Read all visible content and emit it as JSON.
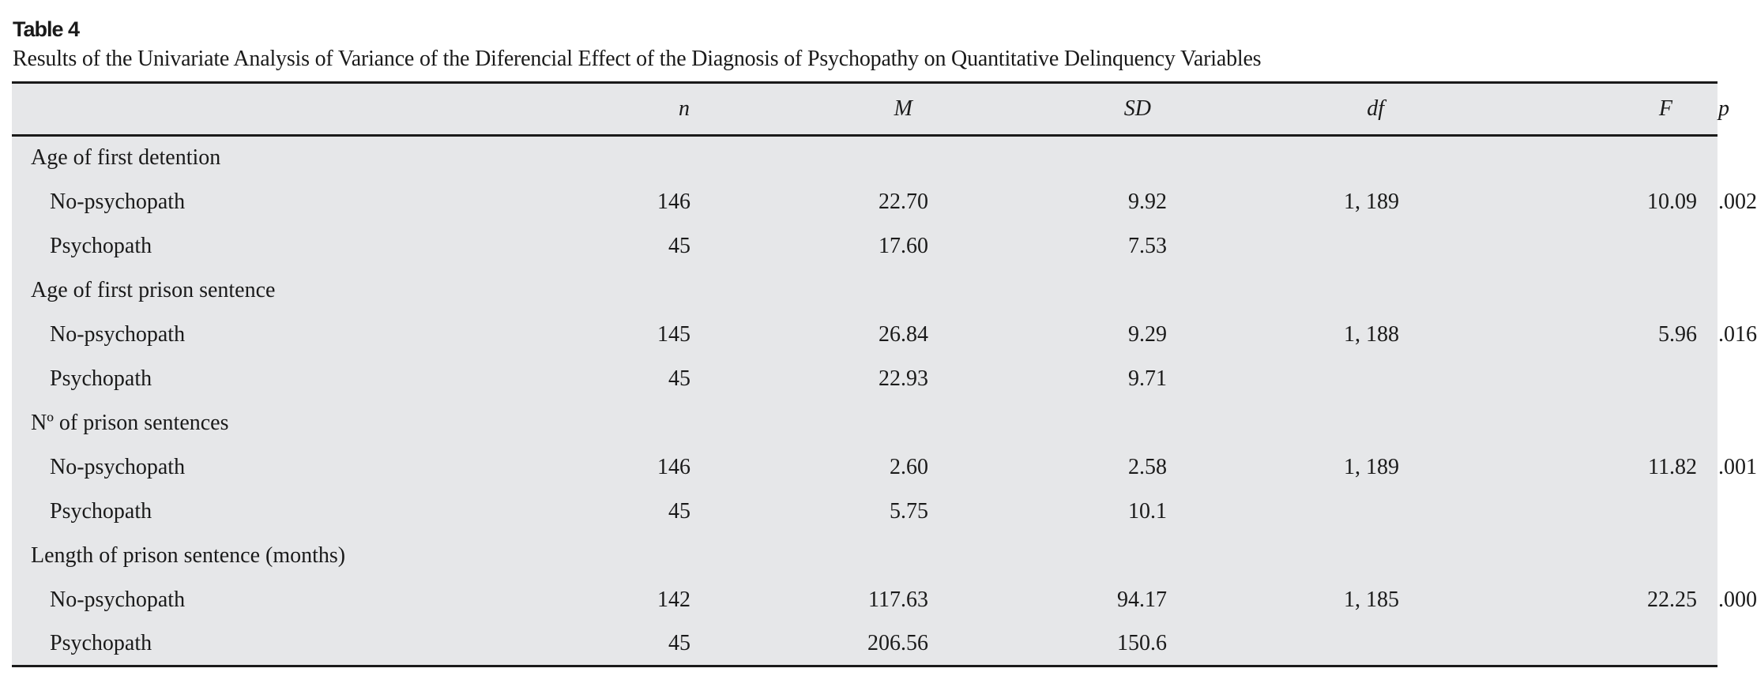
{
  "table": {
    "label": "Table 4",
    "caption": "Results of the Univariate Analysis of Variance of the Diferencial Effect of the Diagnosis of Psychopathy on Quantitative Delinquency Variables",
    "columns": [
      "",
      "n",
      "M",
      "SD",
      "df",
      "F",
      "p"
    ],
    "groups": [
      {
        "variable": "Age of first detention",
        "rows": [
          {
            "label": "No-psychopath",
            "n": "146",
            "M": "22.70",
            "SD": "9.92",
            "df": "1, 189",
            "F": "10.09",
            "p": ".002"
          },
          {
            "label": "Psychopath",
            "n": "45",
            "M": "17.60",
            "SD": "7.53",
            "df": "",
            "F": "",
            "p": ""
          }
        ]
      },
      {
        "variable": "Age of first prison sentence",
        "rows": [
          {
            "label": "No-psychopath",
            "n": "145",
            "M": "26.84",
            "SD": "9.29",
            "df": "1, 188",
            "F": "5.96",
            "p": ".016"
          },
          {
            "label": "Psychopath",
            "n": "45",
            "M": "22.93",
            "SD": "9.71",
            "df": "",
            "F": "",
            "p": ""
          }
        ]
      },
      {
        "variable": "Nº of prison sentences",
        "rows": [
          {
            "label": "No-psychopath",
            "n": "146",
            "M": "2.60",
            "SD": "2.58",
            "df": "1, 189",
            "F": "11.82",
            "p": ".001"
          },
          {
            "label": "Psychopath",
            "n": "45",
            "M": "5.75",
            "SD": "10.1",
            "df": "",
            "F": "",
            "p": ""
          }
        ]
      },
      {
        "variable": "Length of prison sentence (months)",
        "rows": [
          {
            "label": "No-psychopath",
            "n": "142",
            "M": "117.63",
            "SD": "94.17",
            "df": "1, 185",
            "F": "22.25",
            "p": ".000"
          },
          {
            "label": "Psychopath",
            "n": "45",
            "M": "206.56",
            "SD": "150.6",
            "df": "",
            "F": "",
            "p": ""
          }
        ]
      }
    ]
  }
}
